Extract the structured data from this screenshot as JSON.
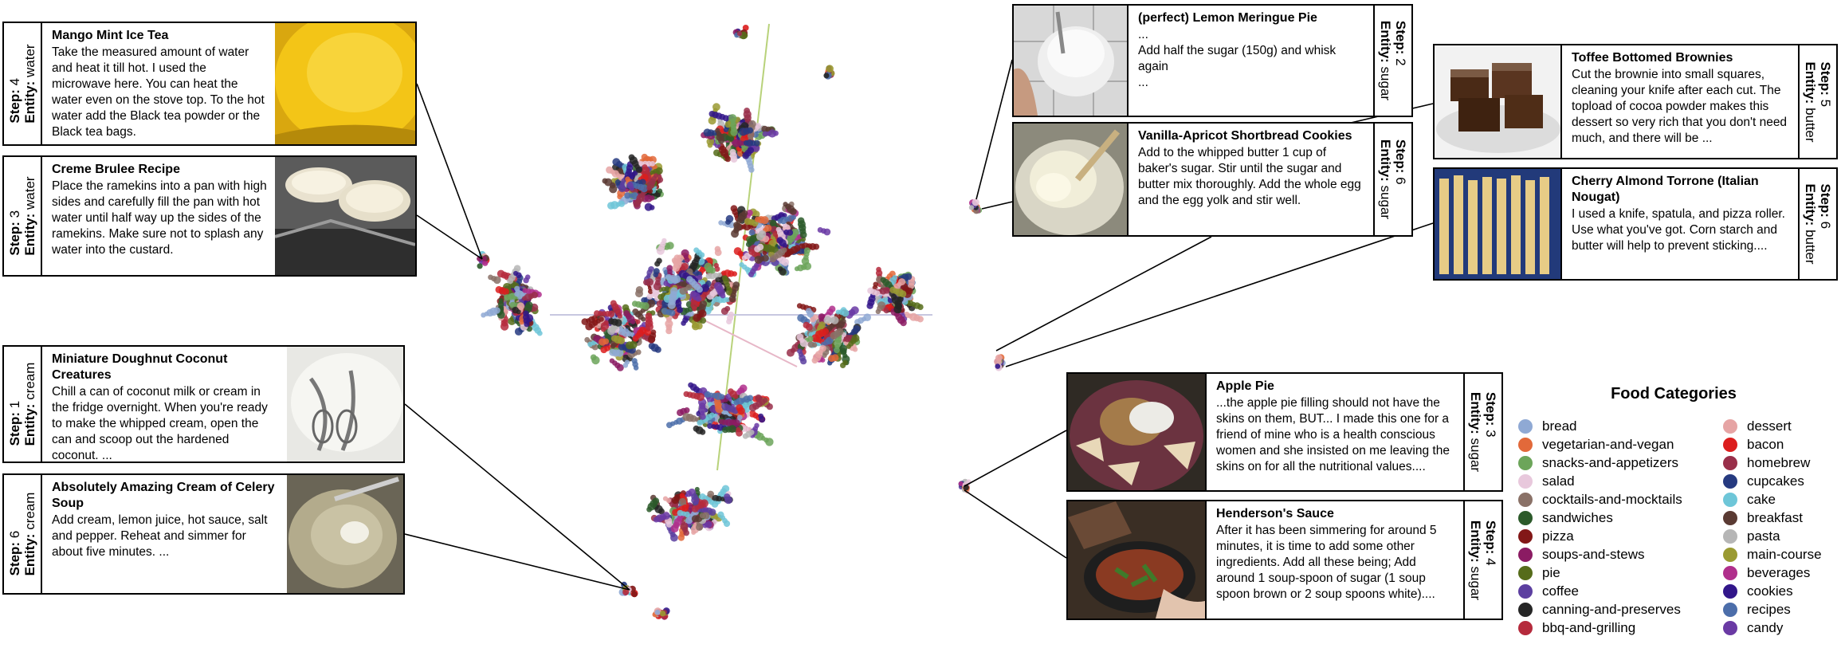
{
  "cards": [
    {
      "id": "mango",
      "title": "Mango Mint Ice Tea",
      "step_key": "Step:",
      "step_val": "4",
      "entity_key": "Entity:",
      "entity_val": "water",
      "text": "Take the measured amount of water and heat it till hot. I used the microwave here. You can heat the water even on the stove top. To the hot water add the Black tea powder or the Black tea bags."
    },
    {
      "id": "creme",
      "title": "Creme Brulee Recipe",
      "step_key": "Step:",
      "step_val": "3",
      "entity_key": "Entity:",
      "entity_val": "water",
      "text": "Place the ramekins into a pan with high sides and carefully fill the pan with hot water until half way up the sides of the ramekins. Make sure not to splash any water into the custard."
    },
    {
      "id": "doughnut",
      "title": "Miniature Doughnut Coconut Creatures",
      "step_key": "Step:",
      "step_val": "1",
      "entity_key": "Entity:",
      "entity_val": "cream",
      "text": "Chill a can of coconut milk or cream in the fridge overnight. When you're ready to make the whipped cream, open the can and scoop out the hardened coconut. ..."
    },
    {
      "id": "celery",
      "title": "Absolutely Amazing Cream of Celery Soup",
      "step_key": "Step:",
      "step_val": "6",
      "entity_key": "Entity:",
      "entity_val": "cream",
      "text": "Add cream, lemon juice, hot sauce, salt and pepper. Reheat and simmer for about five minutes. ..."
    },
    {
      "id": "lemon",
      "title": "(perfect) Lemon Meringue Pie",
      "step_key": "Step:",
      "step_val": "2",
      "entity_key": "Entity:",
      "entity_val": "sugar",
      "text": "...\nAdd half the sugar (150g) and whisk again\n..."
    },
    {
      "id": "vanilla",
      "title": "Vanilla-Apricot Shortbread Cookies",
      "step_key": "Step:",
      "step_val": "6",
      "entity_key": "Entity:",
      "entity_val": "sugar",
      "text": "Add to the whipped butter 1 cup of baker's sugar. Stir until the sugar and butter mix thoroughly. Add the whole egg and the egg yolk and stir well."
    },
    {
      "id": "toffee",
      "title": "Toffee Bottomed Brownies",
      "step_key": "Step:",
      "step_val": "5",
      "entity_key": "Entity:",
      "entity_val": "butter",
      "text": "Cut the brownie into small squares, cleaning your knife after each cut. The topload of cocoa powder makes this dessert so very rich that you don't need much, and there will be ..."
    },
    {
      "id": "cherry",
      "title": "Cherry Almond Torrone (Italian Nougat)",
      "step_key": "Step:",
      "step_val": "6",
      "entity_key": "Entity:",
      "entity_val": "butter",
      "text": "I used a knife, spatula, and pizza roller. Use what you've got. Corn starch and butter will help to prevent sticking...."
    },
    {
      "id": "apple",
      "title": "Apple Pie",
      "step_key": "Step:",
      "step_val": "3",
      "entity_key": "Entity:",
      "entity_val": "sugar",
      "text": "...the apple pie filling should not have the skins on them, BUT... I made this one for a friend of mine who is a health conscious women and she insisted on me leaving the skins on for all the nutritional values...."
    },
    {
      "id": "henderson",
      "title": "Henderson's Sauce",
      "step_key": "Step:",
      "step_val": "4",
      "entity_key": "Entity:",
      "entity_val": "sugar",
      "text": "After it has been simmering for around 5 minutes, it is time to add some other ingredients. Add all these being; Add around 1 soup-spoon of sugar (1 soup spoon brown or 2 soup spoons white)...."
    }
  ],
  "legend": {
    "title": "Food Categories",
    "items": [
      {
        "label": "bread",
        "color": "#8fa9d4"
      },
      {
        "label": "vegetarian-and-vegan",
        "color": "#e2693a"
      },
      {
        "label": "snacks-and-appetizers",
        "color": "#6ca55a"
      },
      {
        "label": "salad",
        "color": "#e8c8dc"
      },
      {
        "label": "cocktails-and-mocktails",
        "color": "#8a7167"
      },
      {
        "label": "sandwiches",
        "color": "#2c5a2a"
      },
      {
        "label": "pizza",
        "color": "#821717"
      },
      {
        "label": "soups-and-stews",
        "color": "#8b1b63"
      },
      {
        "label": "pie",
        "color": "#566c1a"
      },
      {
        "label": "coffee",
        "color": "#5c3fa0"
      },
      {
        "label": "canning-and-preserves",
        "color": "#262626"
      },
      {
        "label": "bbq-and-grilling",
        "color": "#b52a3c"
      },
      {
        "label": "dessert",
        "color": "#e6a4a4"
      },
      {
        "label": "bacon",
        "color": "#dc1d1d"
      },
      {
        "label": "homebrew",
        "color": "#992f4a"
      },
      {
        "label": "cupcakes",
        "color": "#263a80"
      },
      {
        "label": "cake",
        "color": "#6ec6d8"
      },
      {
        "label": "breakfast",
        "color": "#5a3a33"
      },
      {
        "label": "pasta",
        "color": "#b6b6b6"
      },
      {
        "label": "main-course",
        "color": "#9a9a32"
      },
      {
        "label": "beverages",
        "color": "#b02f8c"
      },
      {
        "label": "cookies",
        "color": "#32168a"
      },
      {
        "label": "recipes",
        "color": "#4c6eaa"
      },
      {
        "label": "candy",
        "color": "#6a3aa4"
      }
    ]
  }
}
